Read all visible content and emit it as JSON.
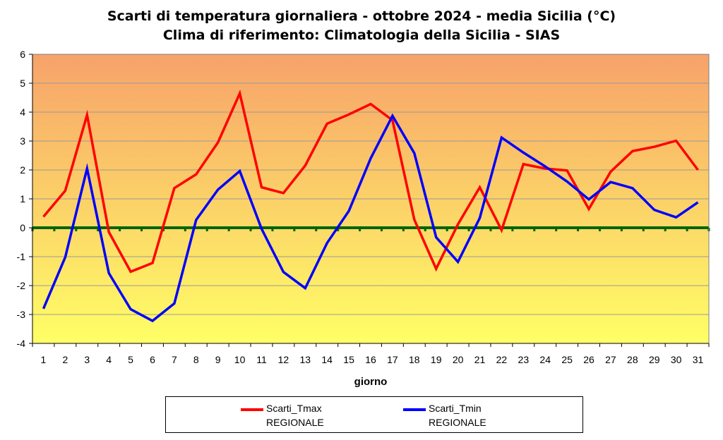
{
  "title_line1": "Scarti di temperatura giornaliera - ottobre 2024 - media Sicilia (°C)",
  "title_line2": "Clima di riferimento: Climatologia della Sicilia - SIAS",
  "chart_data": {
    "type": "line",
    "title": "Scarti di temperatura giornaliera - ottobre 2024 - media Sicilia (°C)\nClima di riferimento: Climatologia della Sicilia - SIAS",
    "xlabel": "giorno",
    "ylabel": "",
    "x": [
      1,
      2,
      3,
      4,
      5,
      6,
      7,
      8,
      9,
      10,
      11,
      12,
      13,
      14,
      15,
      16,
      17,
      18,
      19,
      20,
      21,
      22,
      23,
      24,
      25,
      26,
      27,
      28,
      29,
      30,
      31
    ],
    "ylim": [
      -4,
      6
    ],
    "yticks": [
      -4,
      -3,
      -2,
      -1,
      0,
      1,
      2,
      3,
      4,
      5,
      6
    ],
    "grid": true,
    "legend": "bottom",
    "reference_line": 0,
    "series": [
      {
        "name": "Scarti_Tmax REGIONALE",
        "name_lines": [
          "Scarti_Tmax",
          "REGIONALE"
        ],
        "color": "#ff0000",
        "values": [
          0.38,
          1.28,
          3.9,
          -0.15,
          -1.52,
          -1.22,
          1.37,
          1.85,
          2.95,
          4.65,
          1.4,
          1.2,
          2.15,
          3.6,
          3.92,
          4.28,
          3.72,
          0.28,
          -1.42,
          0.12,
          1.4,
          -0.08,
          2.2,
          2.05,
          1.98,
          0.65,
          1.94,
          2.65,
          2.8,
          3.01,
          2.0
        ]
      },
      {
        "name": "Scarti_Tmin REGIONALE",
        "name_lines": [
          "Scarti_Tmin",
          "REGIONALE"
        ],
        "color": "#0000ff",
        "values": [
          -2.8,
          -1.02,
          2.05,
          -1.57,
          -2.82,
          -3.22,
          -2.62,
          0.27,
          1.32,
          1.96,
          -0.04,
          -1.53,
          -2.09,
          -0.53,
          0.58,
          2.4,
          3.87,
          2.58,
          -0.33,
          -1.18,
          0.34,
          3.12,
          2.6,
          2.12,
          1.6,
          0.98,
          1.58,
          1.37,
          0.62,
          0.36,
          0.88
        ]
      }
    ],
    "colors": {
      "zero_line": "#006400",
      "gradient_top": "#f7a26a",
      "gradient_bottom": "#ffff66"
    }
  }
}
